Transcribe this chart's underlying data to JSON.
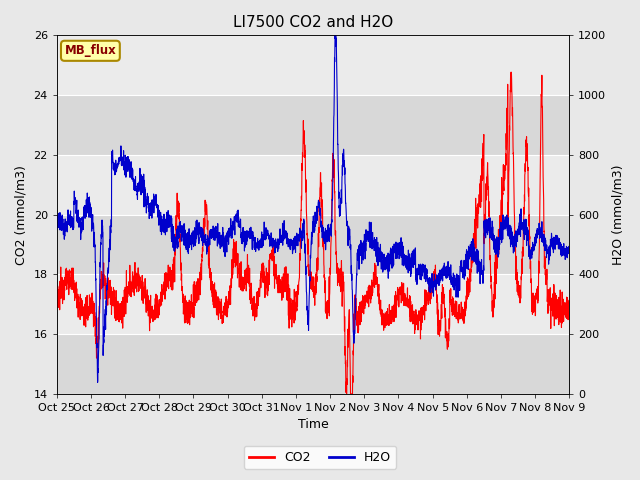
{
  "title": "LI7500 CO2 and H2O",
  "xlabel": "Time",
  "ylabel_left": "CO2 (mmol/m3)",
  "ylabel_right": "H2O (mmol/m3)",
  "ylim_left": [
    14,
    26
  ],
  "ylim_right": [
    0,
    1200
  ],
  "yticks_left": [
    14,
    16,
    18,
    20,
    22,
    24,
    26
  ],
  "yticks_right": [
    0,
    200,
    400,
    600,
    800,
    1000,
    1200
  ],
  "xtick_labels": [
    "Oct 25",
    "Oct 26",
    "Oct 27",
    "Oct 28",
    "Oct 29",
    "Oct 30",
    "Oct 31",
    "Nov 1",
    "Nov 2",
    "Nov 3",
    "Nov 4",
    "Nov 5",
    "Nov 6",
    "Nov 7",
    "Nov 8",
    "Nov 9"
  ],
  "co2_color": "#FF0000",
  "h2o_color": "#0000CC",
  "legend_label_co2": "CO2",
  "legend_label_h2o": "H2O",
  "watermark_text": "MB_flux",
  "watermark_bg": "#FFFFAA",
  "watermark_border": "#AA8800",
  "watermark_text_color": "#880000",
  "fig_bg": "#E8E8E8",
  "plot_bg_light": "#EBEBEB",
  "plot_bg_dark": "#D8D8D8",
  "grid_color": "#FFFFFF",
  "linewidth": 0.8,
  "n_points": 2880
}
